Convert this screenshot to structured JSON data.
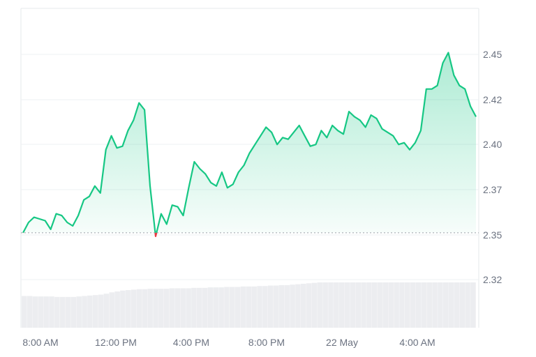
{
  "chart_data": {
    "type": "area",
    "x_ticks": [
      "8:00 AM",
      "12:00 PM",
      "4:00 PM",
      "8:00 PM",
      "22 May",
      "4:00 AM"
    ],
    "y_ticks": [
      "2.45",
      "2.42",
      "2.40",
      "2.37",
      "2.35",
      "2.32"
    ],
    "ylim": [
      2.3,
      2.47
    ],
    "baseline": 2.347,
    "grid": "horizontal",
    "colors": {
      "line_up": "#16c784",
      "line_down": "#ea3943",
      "fill": "#16c784",
      "volume": "#e5e7eb",
      "grid": "#eef0f3",
      "baseline": "#9aa0a6"
    },
    "x_hours": [
      0,
      0.3,
      0.6,
      0.9,
      1.2,
      1.5,
      1.8,
      2.1,
      2.4,
      2.7,
      3.0,
      3.3,
      3.6,
      3.9,
      4.2,
      4.5,
      4.8,
      5.1,
      5.4,
      5.7,
      6.0,
      6.3,
      6.6,
      6.9,
      7.2,
      7.5,
      7.8,
      8.1,
      8.4,
      8.7,
      9.0,
      9.3,
      9.6,
      9.9,
      10.2,
      10.5,
      10.8,
      11.1,
      11.4,
      11.7,
      12.0,
      12.3,
      12.6,
      12.9,
      13.2,
      13.5,
      13.8,
      14.1,
      14.4,
      14.7,
      15.0,
      15.3,
      15.6,
      15.9,
      16.2,
      16.5,
      16.8,
      17.1,
      17.4,
      17.7,
      18.0,
      18.3,
      18.6,
      18.9,
      19.2,
      19.5,
      19.8,
      20.1,
      20.4,
      20.7,
      21.0,
      21.3,
      21.6,
      21.9,
      22.2,
      22.5,
      22.8,
      23.1,
      23.4,
      23.7,
      24.0,
      24.3,
      24.6
    ],
    "price": [
      2.347,
      2.353,
      2.356,
      2.355,
      2.354,
      2.349,
      2.358,
      2.357,
      2.353,
      2.351,
      2.357,
      2.366,
      2.368,
      2.374,
      2.37,
      2.395,
      2.403,
      2.396,
      2.397,
      2.406,
      2.412,
      2.422,
      2.418,
      2.374,
      2.345,
      2.358,
      2.352,
      2.363,
      2.362,
      2.357,
      2.373,
      2.388,
      2.384,
      2.381,
      2.376,
      2.374,
      2.382,
      2.373,
      2.375,
      2.382,
      2.386,
      2.393,
      2.398,
      2.403,
      2.408,
      2.405,
      2.398,
      2.402,
      2.401,
      2.405,
      2.409,
      2.403,
      2.397,
      2.398,
      2.406,
      2.402,
      2.409,
      2.406,
      2.404,
      2.417,
      2.414,
      2.412,
      2.408,
      2.415,
      2.413,
      2.407,
      2.405,
      2.403,
      2.398,
      2.399,
      2.395,
      2.399,
      2.406,
      2.43,
      2.43,
      2.432,
      2.445,
      2.451,
      2.438,
      2.432,
      2.43,
      2.42,
      2.414
    ],
    "volume_level": [
      0.7,
      0.7,
      0.69,
      0.69,
      0.69,
      0.69,
      0.68,
      0.68,
      0.68,
      0.68,
      0.69,
      0.7,
      0.71,
      0.72,
      0.73,
      0.75,
      0.78,
      0.8,
      0.82,
      0.83,
      0.84,
      0.85,
      0.85,
      0.86,
      0.86,
      0.86,
      0.86,
      0.87,
      0.87,
      0.87,
      0.87,
      0.88,
      0.88,
      0.88,
      0.89,
      0.89,
      0.89,
      0.9,
      0.9,
      0.9,
      0.91,
      0.91,
      0.91,
      0.92,
      0.92,
      0.93,
      0.93,
      0.94,
      0.94,
      0.95,
      0.96,
      0.97,
      0.98,
      0.99,
      1.0,
      1.0,
      1.0,
      1.0,
      1.0,
      1.0,
      1.0,
      1.0,
      1.0,
      1.0,
      1.0,
      1.0,
      1.0,
      1.0,
      1.0,
      1.0,
      1.0,
      1.0,
      1.0,
      1.0,
      1.0,
      1.0,
      1.0,
      1.0,
      1.0,
      1.0,
      1.0,
      1.0,
      1.0
    ]
  }
}
